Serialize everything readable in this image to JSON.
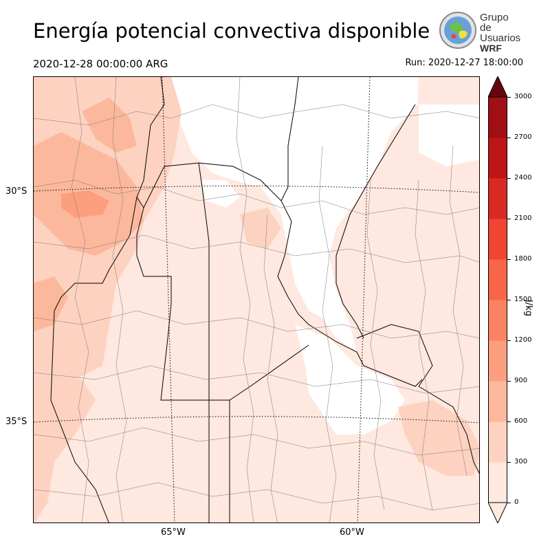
{
  "header": {
    "title": "Energía potencial convectiva disponible",
    "valid_time": "2020-12-28 00:00:00 ARG",
    "run_time": "Run: 2020-12-27 18:00:00"
  },
  "logo": {
    "line1": "Grupo de",
    "line2": "Usuarios",
    "line3": "WRF"
  },
  "map": {
    "lat_labels": [
      "30°S",
      "35°S"
    ],
    "lon_labels": [
      "65°W",
      "60°W"
    ]
  },
  "colorbar": {
    "unit": "J/kg",
    "ticks": [
      "0",
      "300",
      "600",
      "900",
      "1200",
      "1500",
      "1800",
      "2100",
      "2400",
      "2700",
      "3000"
    ],
    "colors": [
      "#fee8df",
      "#fdd2c0",
      "#fcb89c",
      "#fc9f7e",
      "#fb8262",
      "#f96647",
      "#ef4533",
      "#d82a22",
      "#bd1619",
      "#a10f15",
      "#7d0710",
      "#650510"
    ]
  }
}
